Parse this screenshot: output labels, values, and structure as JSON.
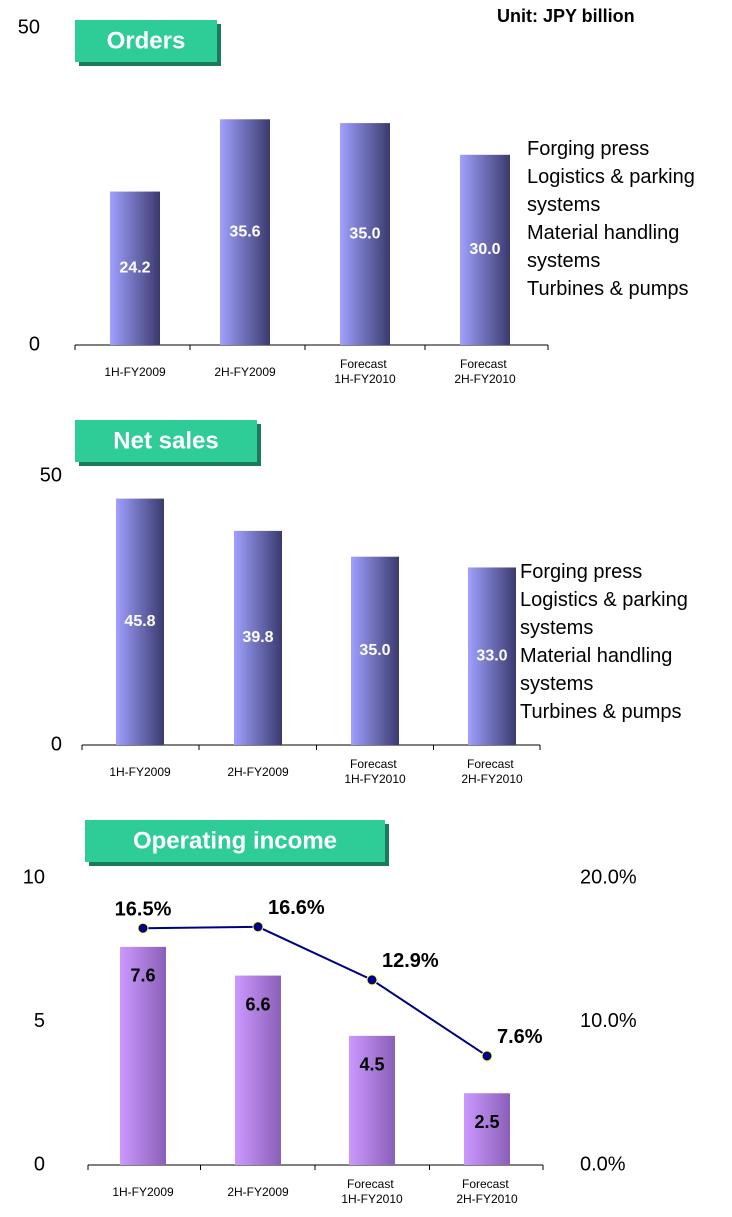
{
  "unit": "Unit: JPY billion",
  "chart_data": [
    {
      "type": "bar",
      "title": "Orders",
      "categories": [
        "1H-FY2009",
        "2H-FY2009",
        "Forecast 1H-FY2010",
        "Forecast 2H-FY2010"
      ],
      "values": [
        24.2,
        35.6,
        35.0,
        30.0
      ],
      "value_labels": [
        "24.2",
        "35.6",
        "35.0",
        "30.0"
      ],
      "color": "#a0a0ff",
      "ylim": [
        0,
        50
      ],
      "yticks": [
        0,
        50
      ],
      "grid": false,
      "legend": [
        "Forging press",
        "Logistics & parking systems",
        "Material handling systems",
        "Turbines & pumps"
      ]
    },
    {
      "type": "bar",
      "title": "Net sales",
      "categories": [
        "1H-FY2009",
        "2H-FY2009",
        "Forecast 1H-FY2010",
        "Forecast 2H-FY2010"
      ],
      "values": [
        45.8,
        39.8,
        35.0,
        33.0
      ],
      "value_labels": [
        "45.8",
        "39.8",
        "35.0",
        "33.0"
      ],
      "color": "#a0a0ff",
      "ylim": [
        0,
        50
      ],
      "yticks": [
        0,
        50
      ],
      "grid": false,
      "legend": [
        "Forging press",
        "Logistics & parking systems",
        "Material handling systems",
        "Turbines & pumps"
      ]
    },
    {
      "type": "combo",
      "title": "Operating income",
      "categories": [
        "1H-FY2009",
        "2H-FY2009",
        "Forecast 1H-FY2010",
        "Forecast 2H-FY2010"
      ],
      "ylim": [
        0,
        10
      ],
      "yticks": [
        0,
        5,
        10
      ],
      "y2lim": [
        0,
        20
      ],
      "y2ticks": [
        {
          "value": 0,
          "label": "0.0%"
        },
        {
          "value": 10,
          "label": "10.0%"
        },
        {
          "value": 20,
          "label": "20.0%"
        }
      ],
      "grid": false,
      "series": [
        {
          "type": "bar",
          "color": "#cc99ff",
          "values": [
            7.6,
            6.6,
            4.5,
            2.5
          ]
        },
        {
          "type": "line",
          "axis": "y2",
          "color": "#000080",
          "values": [
            16.5,
            16.6,
            12.9,
            7.6
          ],
          "value_labels": [
            "16.5%",
            "16.6%",
            "12.9%",
            "7.6%"
          ]
        }
      ]
    }
  ]
}
